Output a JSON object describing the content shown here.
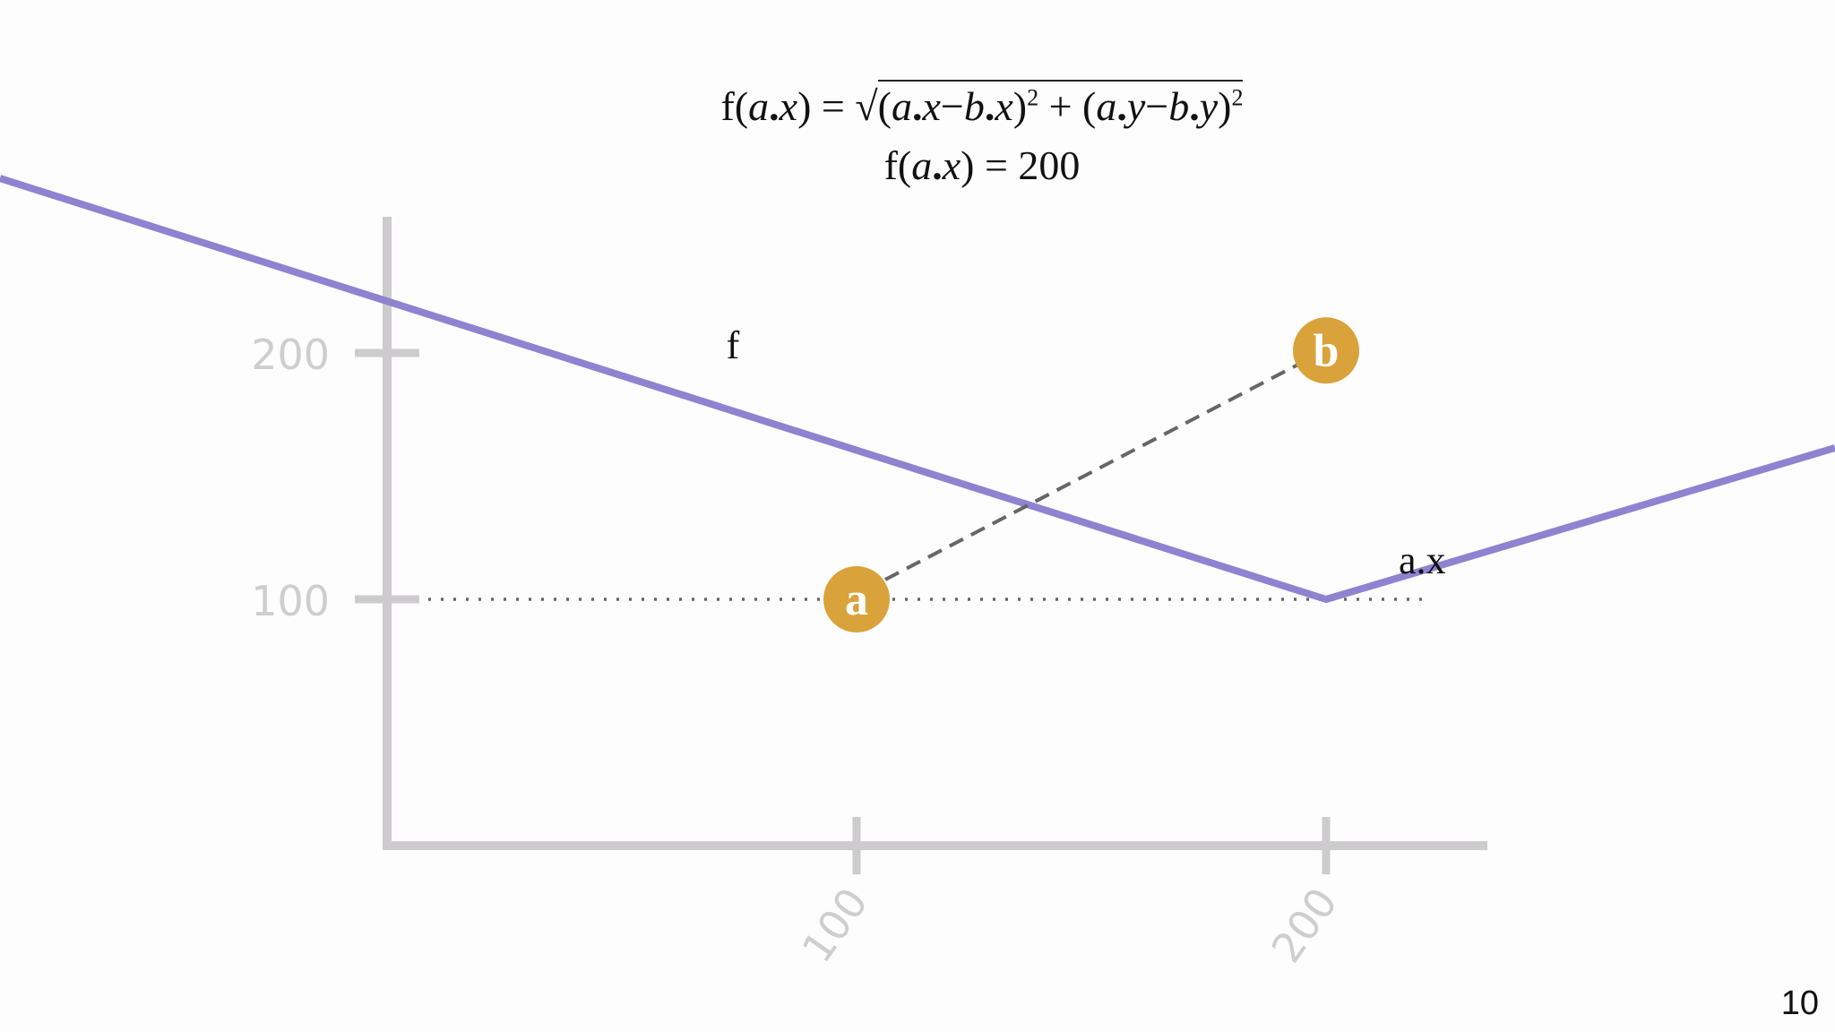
{
  "formula": {
    "line1": {
      "lhs_f": "f(",
      "lhs_a": "a",
      "lhs_dotx": ".",
      "lhs_x": "x",
      "lhs_close": ")",
      "eq": " = ",
      "sqrt_sign": "√",
      "t1_open": "(",
      "t1_a": "a",
      "t1_dot1": ".",
      "t1_x1": "x",
      "t1_minus": "−",
      "t1_b": "b",
      "t1_dot2": ".",
      "t1_x2": "x",
      "t1_close": ")",
      "t1_sq": "2",
      "plus": " + ",
      "t2_open": "(",
      "t2_a": "a",
      "t2_dot1": ".",
      "t2_y1": "y",
      "t2_minus": "−",
      "t2_b": "b",
      "t2_dot2": ".",
      "t2_y2": "y",
      "t2_close": ")",
      "t2_sq": "2"
    },
    "line2": {
      "lhs_f": "f(",
      "lhs_a": "a",
      "lhs_dotx": ".",
      "lhs_x": "x",
      "lhs_close": ")",
      "eq": " = ",
      "value": "200"
    }
  },
  "axes": {
    "y_ticks": [
      {
        "value": 200,
        "label": "200"
      },
      {
        "value": 100,
        "label": "100"
      }
    ],
    "x_ticks": [
      {
        "value": 100,
        "label": "100"
      },
      {
        "value": 200,
        "label": "200"
      }
    ]
  },
  "function": {
    "label": "f",
    "vertex": {
      "x": 200,
      "y": 100
    },
    "vertex_label": "a.x"
  },
  "points": [
    {
      "id": "a",
      "label": "a",
      "x": 100,
      "y": 100
    },
    {
      "id": "b",
      "label": "b",
      "x": 200,
      "y": 201
    }
  ],
  "page_number": "10",
  "colors": {
    "axis": "#cdcbcd",
    "tick_label": "#cfcdd0",
    "function_line": "#8f82d0",
    "point_fill": "#d9a23a",
    "point_text": "#ffffff",
    "guide": "#666666"
  }
}
